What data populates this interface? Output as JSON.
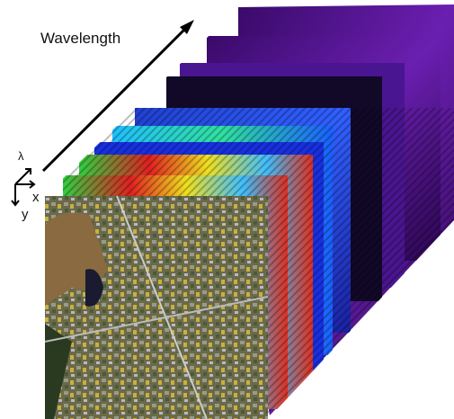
{
  "labels": {
    "wavelength": "Wavelength",
    "lambda": "λ",
    "x": "x",
    "y": "y"
  }
}
